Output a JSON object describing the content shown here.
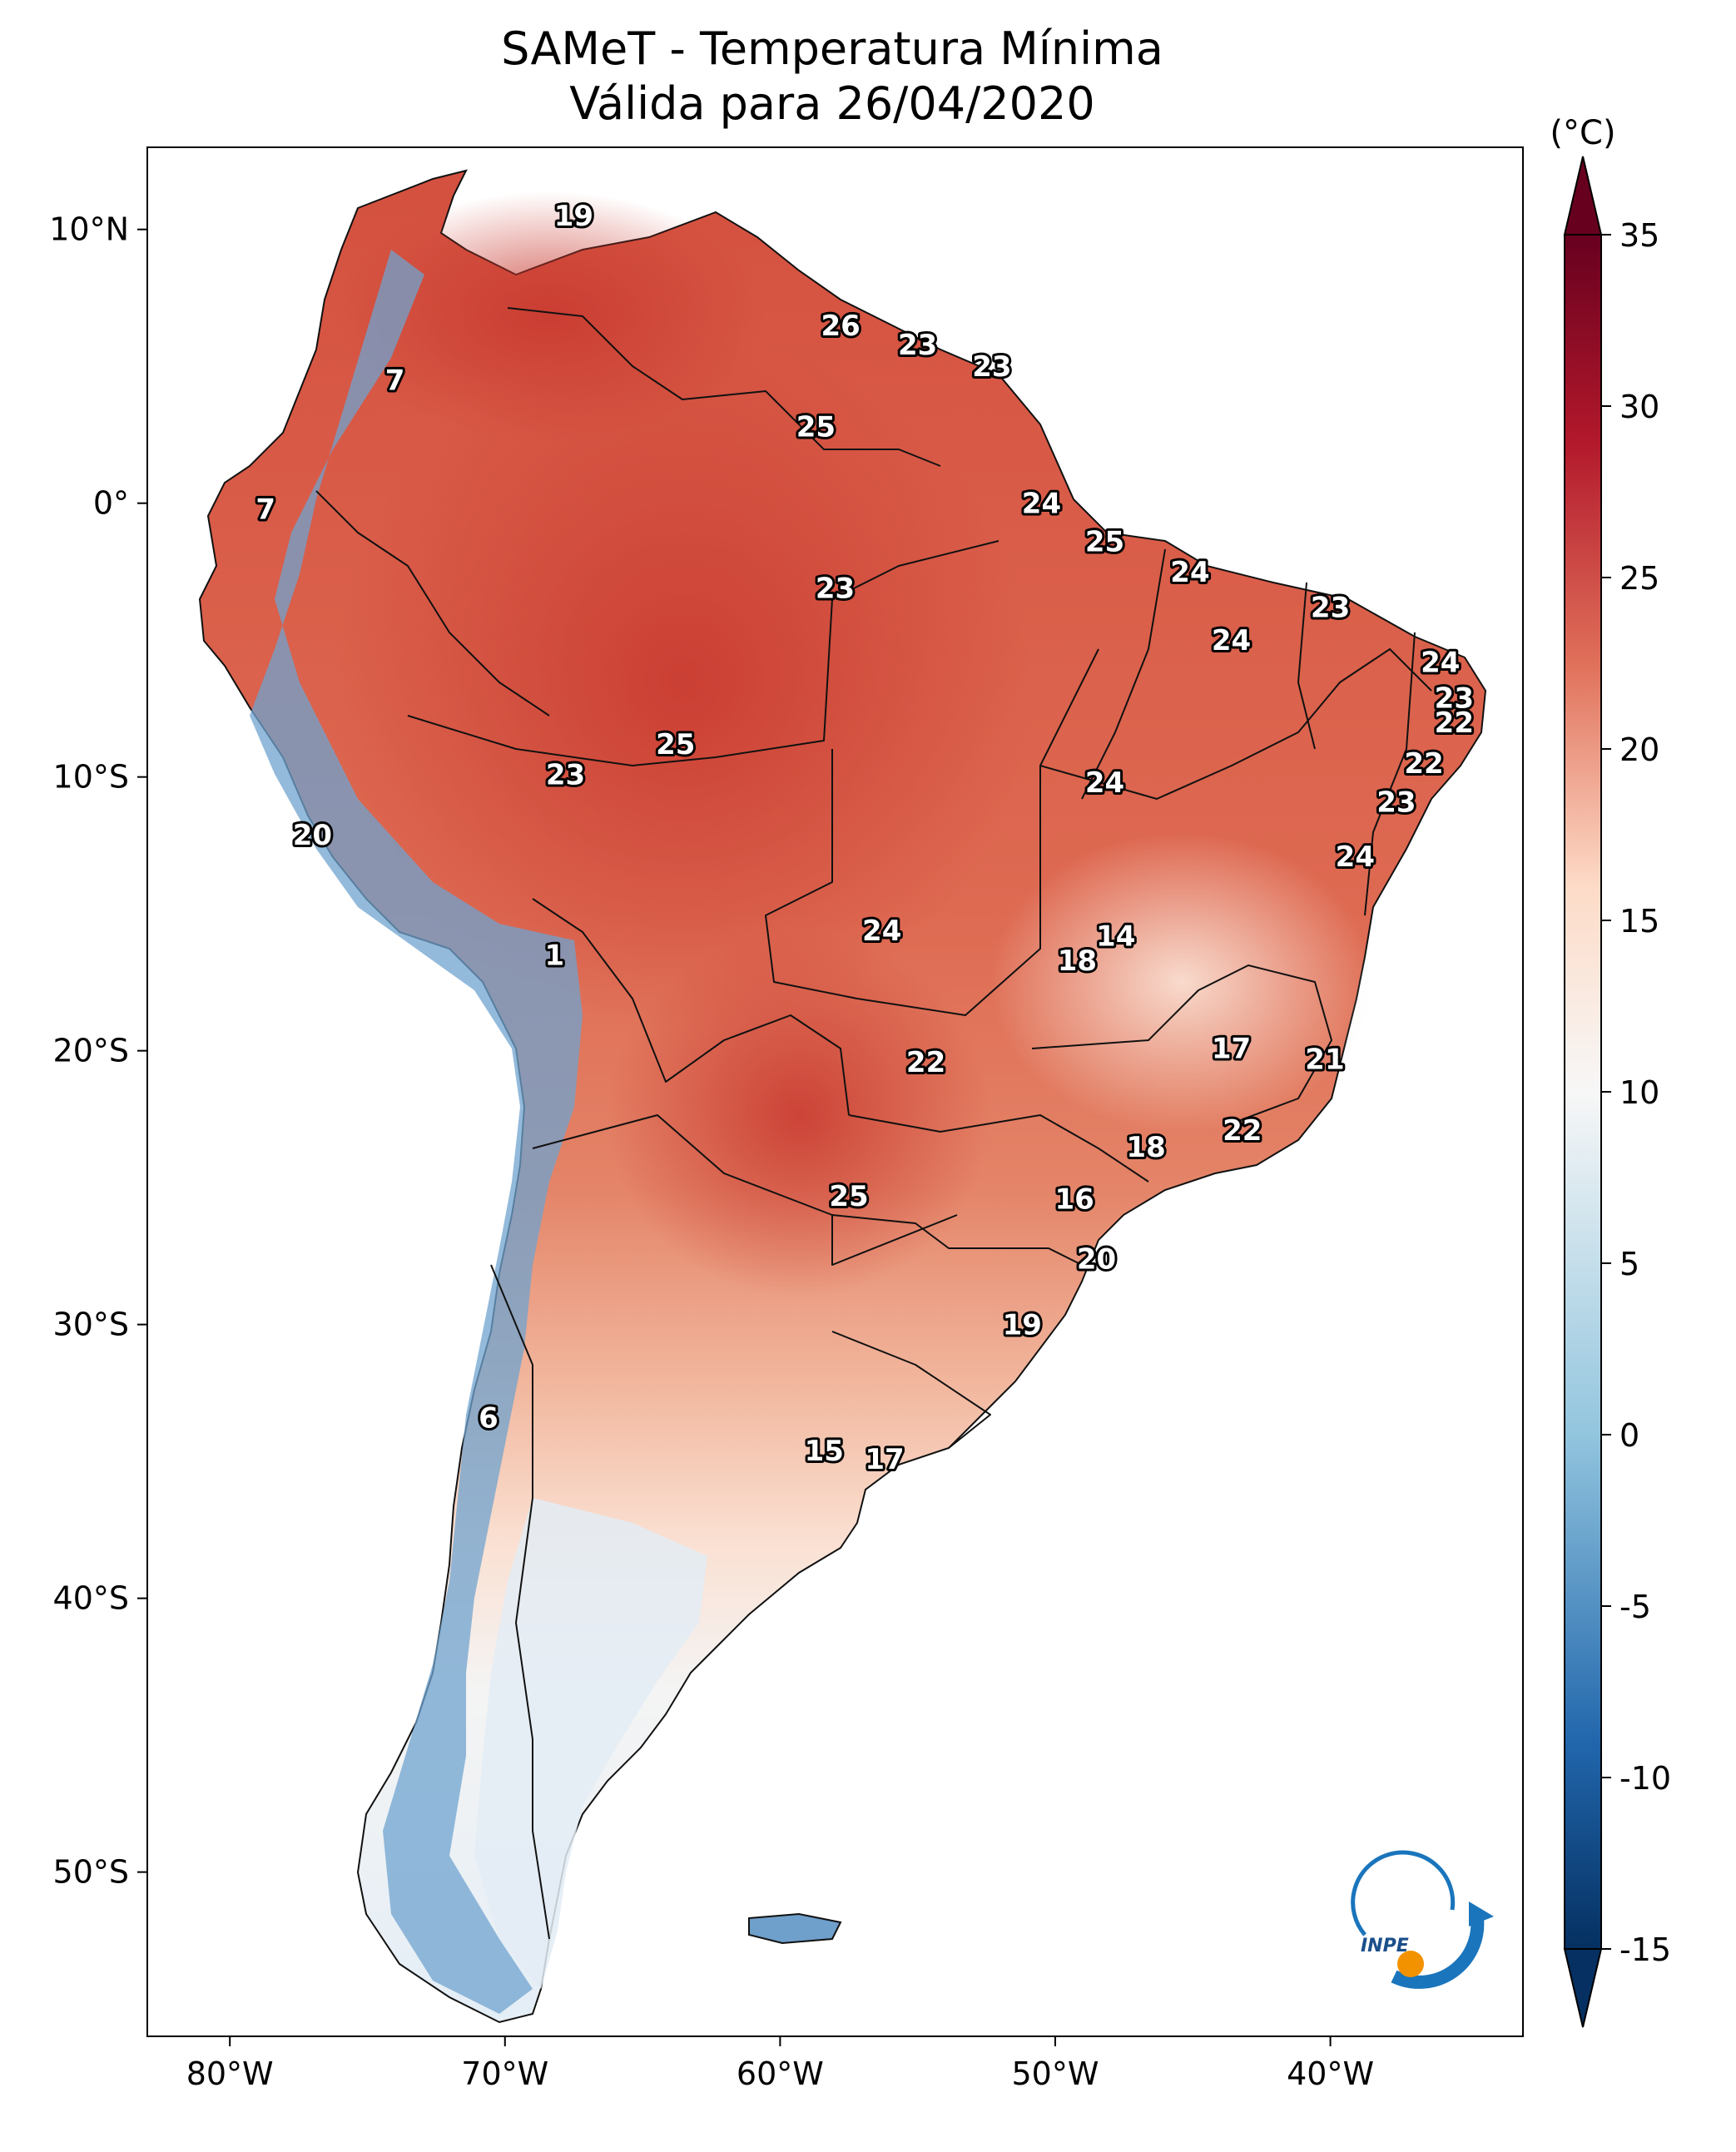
{
  "title": {
    "line1": "SAMeT - Temperatura Mínima",
    "line2": "Válida para 26/04/2020"
  },
  "map": {
    "type": "choropleth-map",
    "region": "South America",
    "extent": {
      "lon": [
        -83,
        -33
      ],
      "lat": [
        -56,
        13
      ]
    },
    "lon_ticks": [
      {
        "value": -80,
        "label": "80°W"
      },
      {
        "value": -70,
        "label": "70°W"
      },
      {
        "value": -60,
        "label": "60°W"
      },
      {
        "value": -50,
        "label": "50°W"
      },
      {
        "value": -40,
        "label": "40°W"
      }
    ],
    "lat_ticks": [
      {
        "value": 10,
        "label": "10°N"
      },
      {
        "value": 0,
        "label": "0°"
      },
      {
        "value": -10,
        "label": "10°S"
      },
      {
        "value": -20,
        "label": "20°S"
      },
      {
        "value": -30,
        "label": "30°S"
      },
      {
        "value": -40,
        "label": "40°S"
      },
      {
        "value": -50,
        "label": "50°S"
      }
    ],
    "point_labels": [
      {
        "lon": -67.5,
        "lat": 10.5,
        "text": "19"
      },
      {
        "lon": -57.8,
        "lat": 6.5,
        "text": "26"
      },
      {
        "lon": -55.0,
        "lat": 5.8,
        "text": "23"
      },
      {
        "lon": -52.3,
        "lat": 5.0,
        "text": "23"
      },
      {
        "lon": -74.0,
        "lat": 4.5,
        "text": "7"
      },
      {
        "lon": -58.7,
        "lat": 2.8,
        "text": "25"
      },
      {
        "lon": -78.7,
        "lat": -0.2,
        "text": "7"
      },
      {
        "lon": -50.5,
        "lat": 0.0,
        "text": "24"
      },
      {
        "lon": -48.2,
        "lat": -1.4,
        "text": "25"
      },
      {
        "lon": -45.1,
        "lat": -2.5,
        "text": "24"
      },
      {
        "lon": -40.0,
        "lat": -3.8,
        "text": "23"
      },
      {
        "lon": -58.0,
        "lat": -3.1,
        "text": "23"
      },
      {
        "lon": -43.6,
        "lat": -5.0,
        "text": "24"
      },
      {
        "lon": -36.0,
        "lat": -5.8,
        "text": "24"
      },
      {
        "lon": -35.5,
        "lat": -7.1,
        "text": "23"
      },
      {
        "lon": -35.5,
        "lat": -8.0,
        "text": "22"
      },
      {
        "lon": -36.6,
        "lat": -9.5,
        "text": "22"
      },
      {
        "lon": -63.8,
        "lat": -8.8,
        "text": "25"
      },
      {
        "lon": -67.8,
        "lat": -9.9,
        "text": "23"
      },
      {
        "lon": -48.2,
        "lat": -10.2,
        "text": "24"
      },
      {
        "lon": -37.6,
        "lat": -10.9,
        "text": "23"
      },
      {
        "lon": -77.0,
        "lat": -12.1,
        "text": "20"
      },
      {
        "lon": -39.1,
        "lat": -12.9,
        "text": "24"
      },
      {
        "lon": -47.8,
        "lat": -15.8,
        "text": "14"
      },
      {
        "lon": -56.3,
        "lat": -15.6,
        "text": "24"
      },
      {
        "lon": -49.2,
        "lat": -16.7,
        "text": "18"
      },
      {
        "lon": -68.2,
        "lat": -16.5,
        "text": "1"
      },
      {
        "lon": -43.6,
        "lat": -19.9,
        "text": "17"
      },
      {
        "lon": -40.2,
        "lat": -20.3,
        "text": "21"
      },
      {
        "lon": -54.7,
        "lat": -20.4,
        "text": "22"
      },
      {
        "lon": -43.2,
        "lat": -22.9,
        "text": "22"
      },
      {
        "lon": -46.7,
        "lat": -23.5,
        "text": "18"
      },
      {
        "lon": -57.5,
        "lat": -25.3,
        "text": "25"
      },
      {
        "lon": -49.3,
        "lat": -25.4,
        "text": "16"
      },
      {
        "lon": -48.5,
        "lat": -27.6,
        "text": "20"
      },
      {
        "lon": -51.2,
        "lat": -30.0,
        "text": "19"
      },
      {
        "lon": -70.6,
        "lat": -33.4,
        "text": "6"
      },
      {
        "lon": -58.4,
        "lat": -34.6,
        "text": "15"
      },
      {
        "lon": -56.2,
        "lat": -34.9,
        "text": "17"
      }
    ]
  },
  "colorbar": {
    "unit": "(°C)",
    "min": -15,
    "max": 35,
    "ticks": [
      {
        "value": 35,
        "label": "35"
      },
      {
        "value": 30,
        "label": "30"
      },
      {
        "value": 25,
        "label": "25"
      },
      {
        "value": 20,
        "label": "20"
      },
      {
        "value": 15,
        "label": "15"
      },
      {
        "value": 10,
        "label": "10"
      },
      {
        "value": 5,
        "label": "5"
      },
      {
        "value": 0,
        "label": "0"
      },
      {
        "value": -5,
        "label": "-5"
      },
      {
        "value": -10,
        "label": "-10"
      },
      {
        "value": -15,
        "label": "-15"
      }
    ],
    "colors": {
      "cold_end": "#053061",
      "cool_mid": "#2166ac",
      "cool_light": "#92c5de",
      "neutral": "#f7f7f7",
      "warm_light": "#fddbc7",
      "warm_mid": "#e0705a",
      "hot": "#b2182b",
      "hot_end": "#67001f"
    }
  },
  "logo": {
    "text": "INPE",
    "colors": {
      "arc": "#1a75bc",
      "dot": "#f39200"
    }
  }
}
